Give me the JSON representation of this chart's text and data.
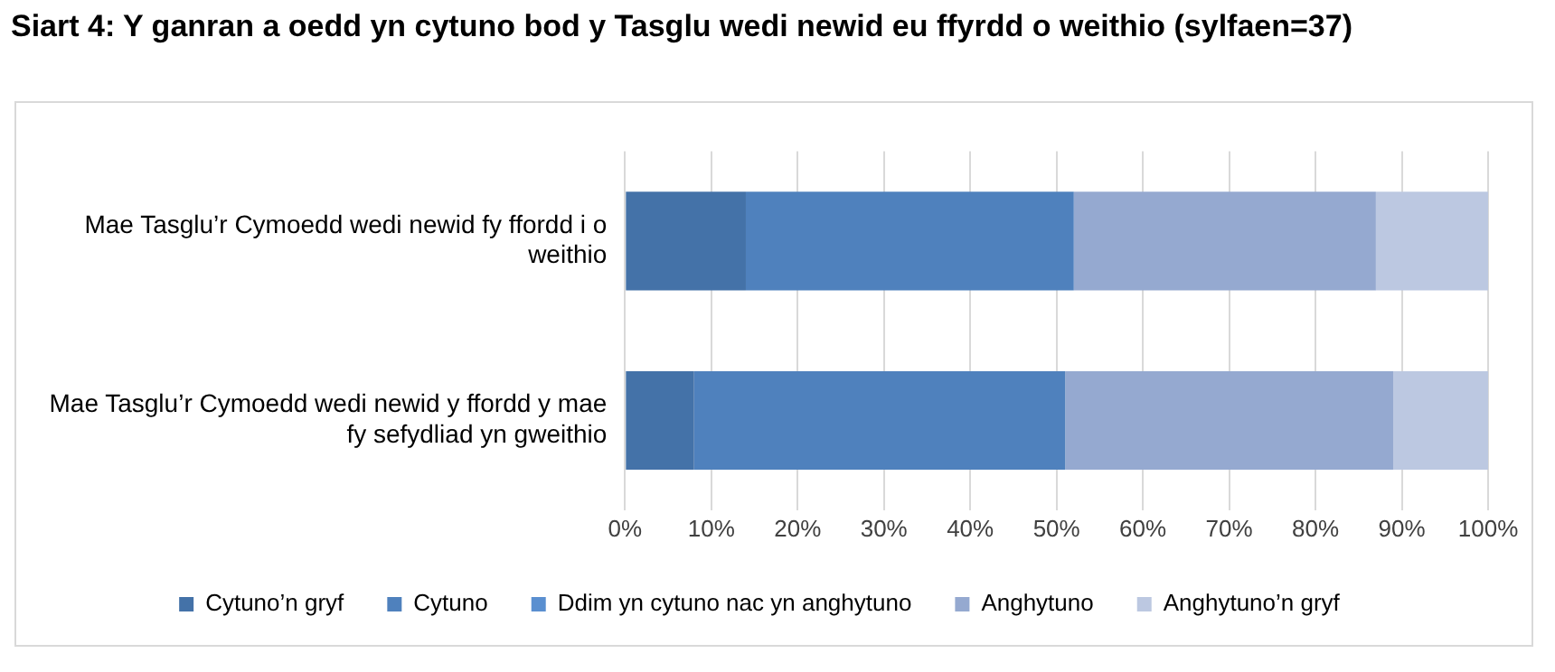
{
  "chart_data": {
    "type": "bar",
    "orientation": "horizontal",
    "stacked": true,
    "title": "Siart 4: Y ganran a oedd yn cytuno bod y Tasglu wedi newid eu ffyrdd o weithio (sylfaen=37)",
    "categories": [
      "Mae Tasglu’r Cymoedd wedi newid fy ffordd i o weithio",
      "Mae Tasglu’r Cymoedd wedi newid y ffordd y mae fy sefydliad yn gweithio"
    ],
    "series": [
      {
        "name": "Cytuno’n gryf",
        "color": "#4472a8",
        "values": [
          14,
          8
        ]
      },
      {
        "name": "Cytuno",
        "color": "#4f81bd",
        "values": [
          38,
          43
        ]
      },
      {
        "name": "Ddim yn cytuno nac yn anghytuno",
        "color": "#5a8fd0",
        "values": [
          0,
          0
        ]
      },
      {
        "name": "Anghytuno",
        "color": "#95a9d0",
        "values": [
          35,
          38
        ]
      },
      {
        "name": "Anghytuno’n gryf",
        "color": "#bcc8e1",
        "values": [
          13,
          11
        ]
      }
    ],
    "xlim": [
      0,
      100
    ],
    "xticks": [
      {
        "value": 0,
        "label": "0%"
      },
      {
        "value": 10,
        "label": "10%"
      },
      {
        "value": 20,
        "label": "20%"
      },
      {
        "value": 30,
        "label": "30%"
      },
      {
        "value": 40,
        "label": "40%"
      },
      {
        "value": 50,
        "label": "50%"
      },
      {
        "value": 60,
        "label": "60%"
      },
      {
        "value": 70,
        "label": "70%"
      },
      {
        "value": 80,
        "label": "80%"
      },
      {
        "value": 90,
        "label": "90%"
      },
      {
        "value": 100,
        "label": "100%"
      }
    ],
    "grid": "x",
    "legend": "bottom"
  }
}
